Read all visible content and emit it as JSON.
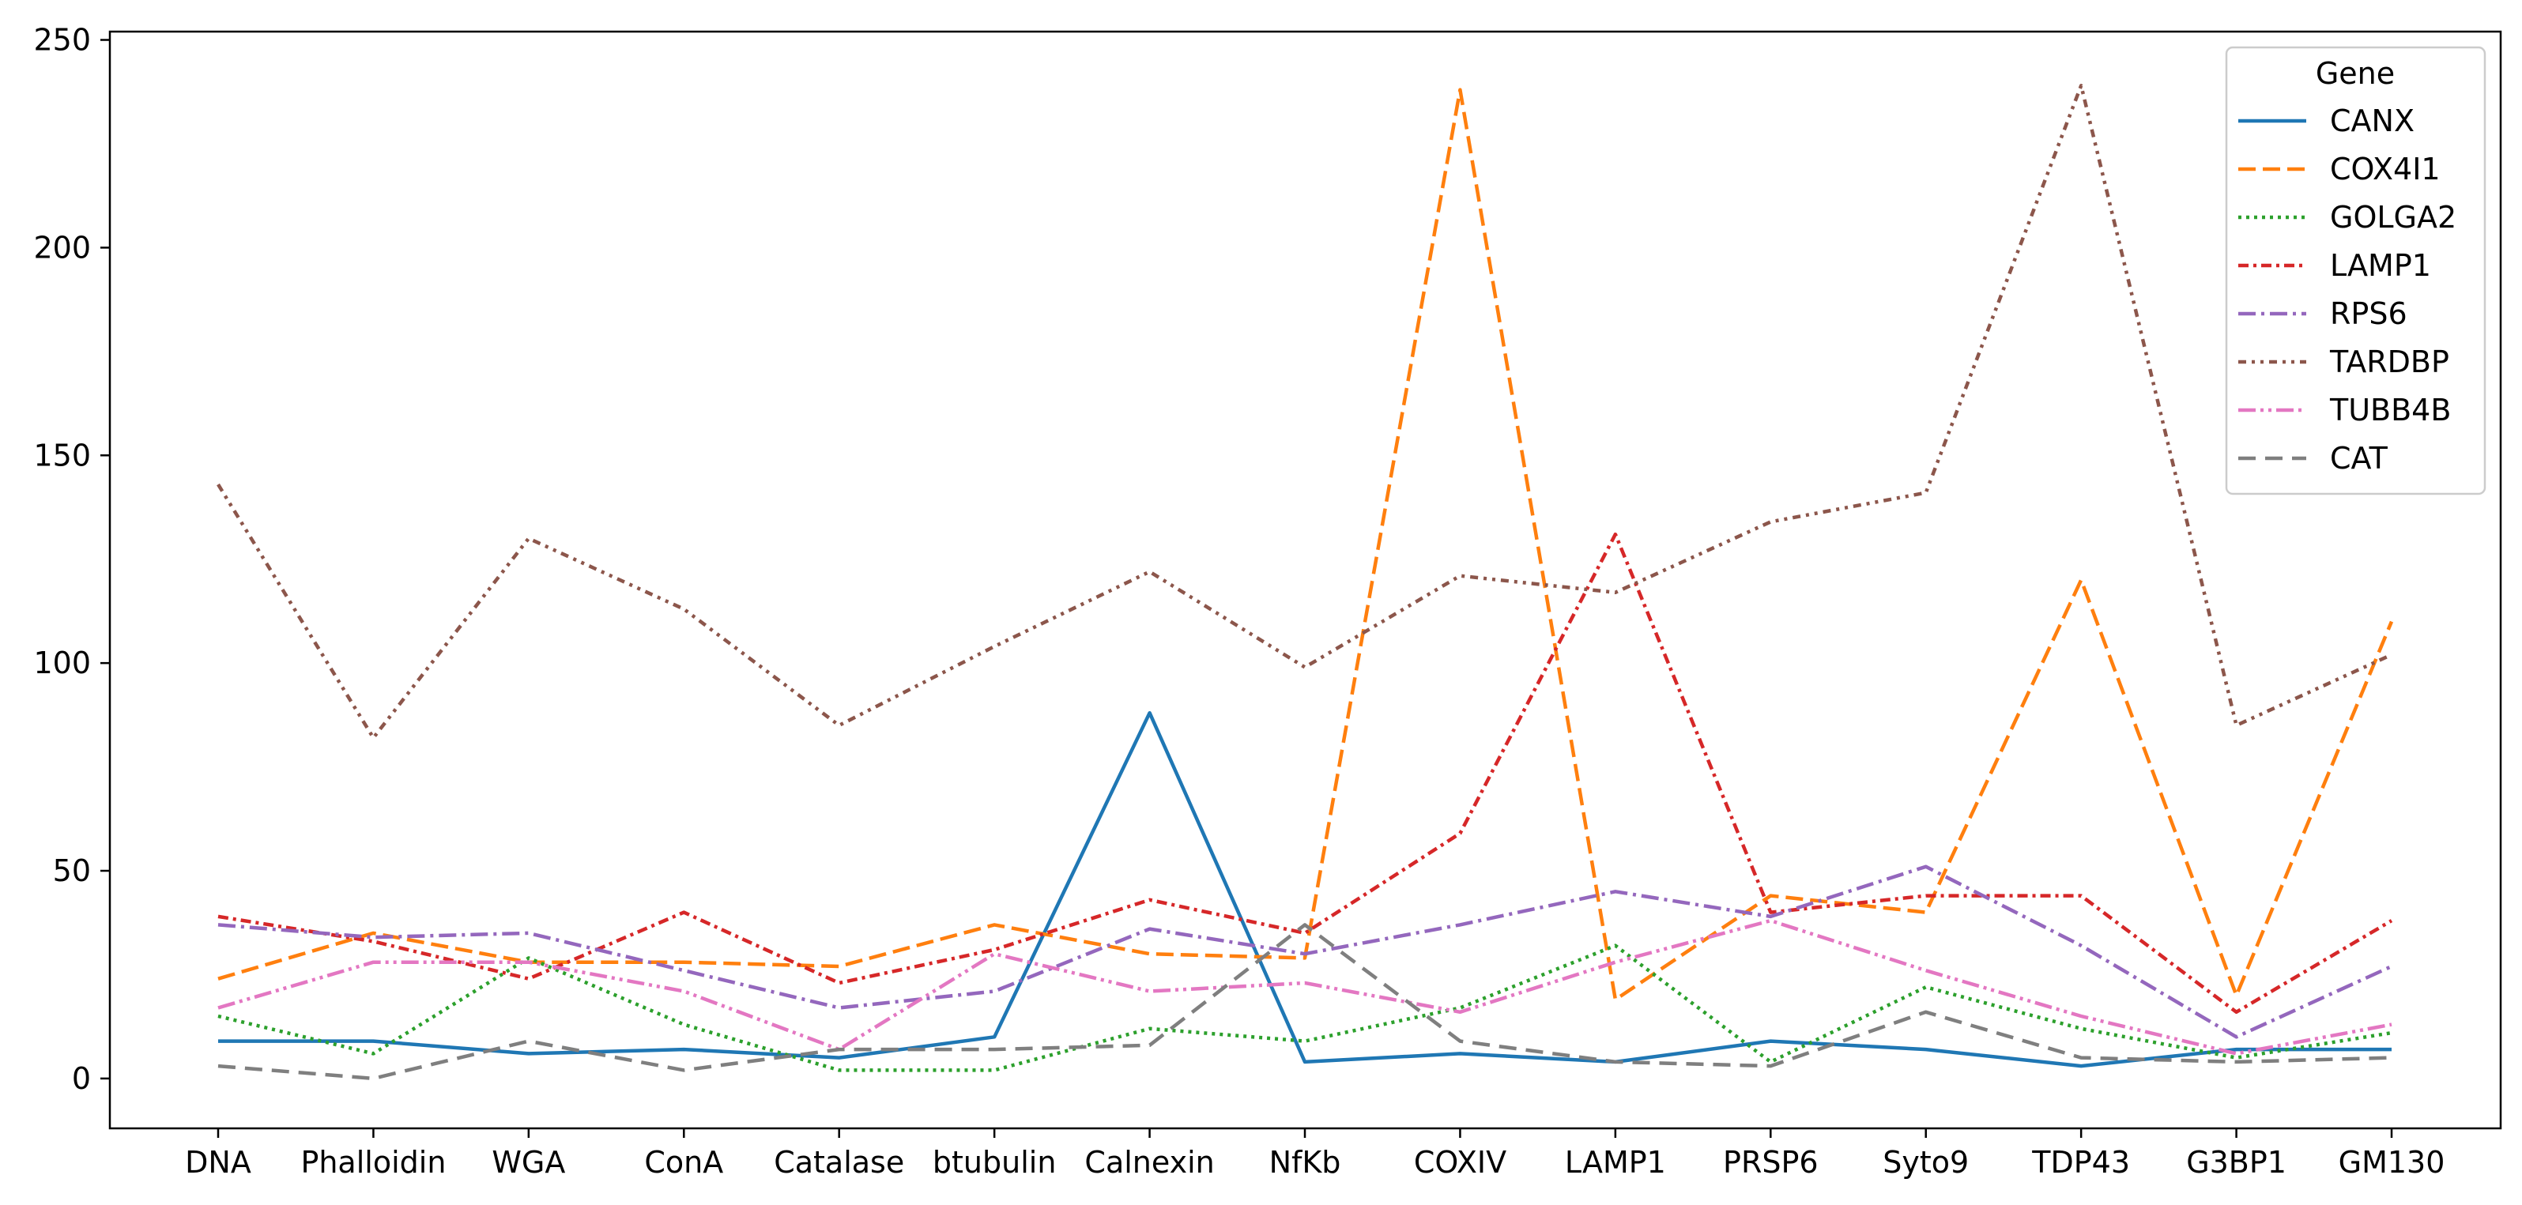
{
  "chart_data": {
    "type": "line",
    "categories": [
      "DNA",
      "Phalloidin",
      "WGA",
      "ConA",
      "Catalase",
      "btubulin",
      "Calnexin",
      "NfKb",
      "COXIV",
      "LAMP1",
      "PRSP6",
      "Syto9",
      "TDP43",
      "G3BP1",
      "GM130"
    ],
    "ylim": [
      -12,
      252
    ],
    "yticks": [
      0,
      50,
      100,
      150,
      200,
      250
    ],
    "grid": false,
    "legend": {
      "title": "Gene",
      "placement": "top-right"
    },
    "series": [
      {
        "name": "CANX",
        "color": "#1f77b4",
        "dash": "solid",
        "values": [
          9,
          9,
          6,
          7,
          5,
          10,
          88,
          4,
          6,
          4,
          9,
          7,
          3,
          7,
          7
        ]
      },
      {
        "name": "COX4I1",
        "color": "#ff7f0e",
        "dash": "dashed",
        "values": [
          24,
          35,
          28,
          28,
          27,
          37,
          30,
          29,
          238,
          19,
          44,
          40,
          120,
          20,
          110
        ]
      },
      {
        "name": "GOLGA2",
        "color": "#2ca02c",
        "dash": "dotted",
        "values": [
          15,
          6,
          29,
          13,
          2,
          2,
          12,
          9,
          17,
          32,
          4,
          22,
          12,
          5,
          11
        ]
      },
      {
        "name": "LAMP1",
        "color": "#d62728",
        "dash": "dashdot",
        "values": [
          39,
          33,
          24,
          40,
          23,
          31,
          43,
          35,
          59,
          131,
          40,
          44,
          44,
          16,
          38
        ]
      },
      {
        "name": "RPS6",
        "color": "#9467bd",
        "dash": "dashdot2",
        "values": [
          37,
          34,
          35,
          26,
          17,
          21,
          36,
          30,
          37,
          45,
          39,
          51,
          32,
          10,
          27
        ]
      },
      {
        "name": "TARDBP",
        "color": "#8c564b",
        "dash": "dashdotdot",
        "values": [
          143,
          82,
          130,
          113,
          85,
          104,
          122,
          99,
          121,
          117,
          134,
          141,
          239,
          85,
          102
        ]
      },
      {
        "name": "TUBB4B",
        "color": "#e377c2",
        "dash": "dashdot3",
        "values": [
          17,
          28,
          28,
          21,
          7,
          30,
          21,
          23,
          16,
          28,
          38,
          26,
          15,
          6,
          13
        ]
      },
      {
        "name": "CAT",
        "color": "#7f7f7f",
        "dash": "dashed2",
        "values": [
          3,
          0,
          9,
          2,
          7,
          7,
          8,
          37,
          9,
          4,
          3,
          16,
          5,
          4,
          5
        ]
      }
    ]
  }
}
